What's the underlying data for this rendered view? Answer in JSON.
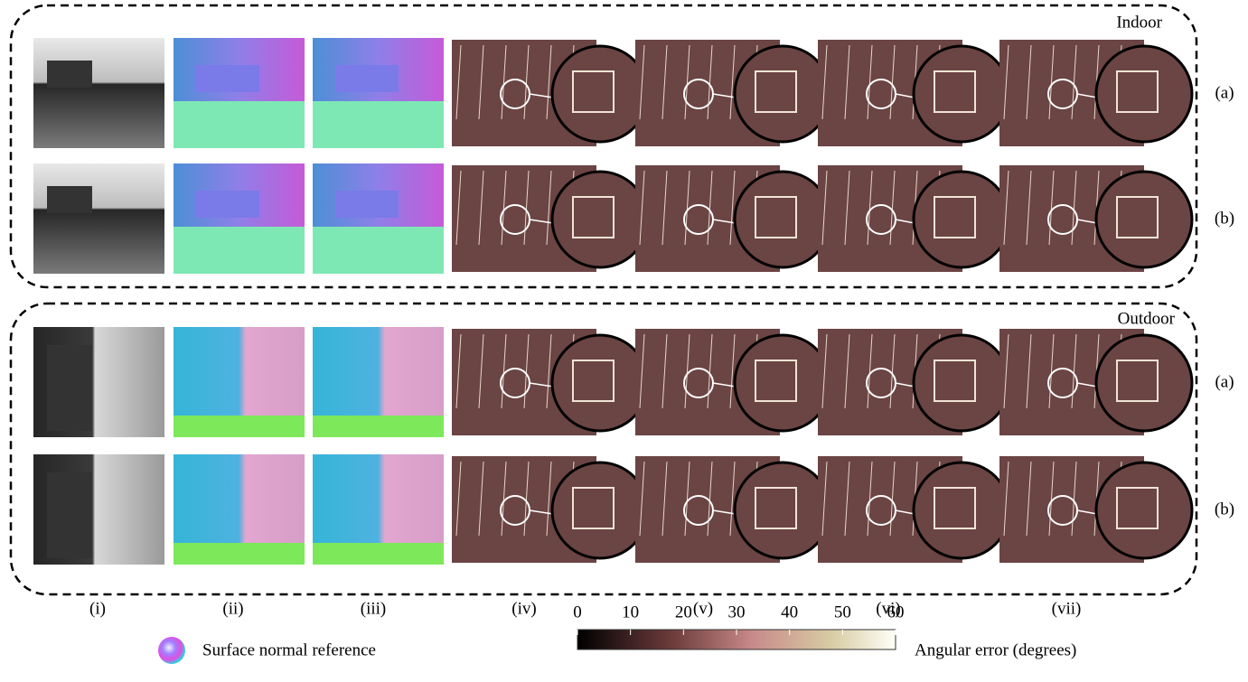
{
  "panels": {
    "indoor": "Indoor",
    "outdoor": "Outdoor"
  },
  "row_labels": [
    "(a)",
    "(b)",
    "(a)",
    "(b)"
  ],
  "columns": [
    "(i)",
    "(ii)",
    "(iii)",
    "(iv)",
    "(v)",
    "(vi)",
    "(vii)"
  ],
  "legend": {
    "normal_reference": "Surface normal reference"
  },
  "colorbar": {
    "label": "Angular error (degrees)",
    "lim": [
      0,
      60
    ],
    "ticks": [
      0,
      10,
      20,
      30,
      40,
      50,
      60
    ]
  }
}
